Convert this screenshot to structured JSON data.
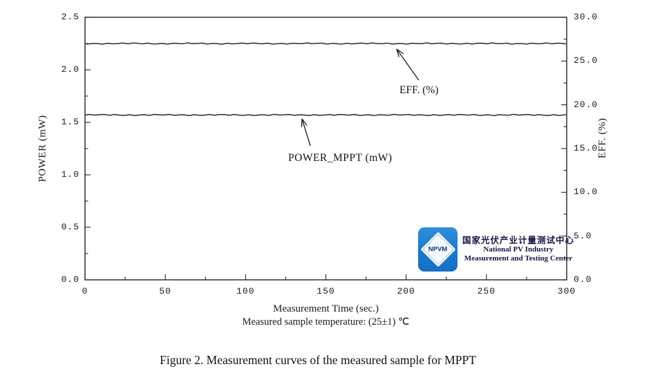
{
  "chart_data": {
    "type": "line",
    "title": "",
    "x_axis": {
      "label": "Measurement Time (sec.)",
      "min": 0,
      "max": 300,
      "major_ticks": [
        0,
        50,
        100,
        150,
        200,
        250,
        300
      ],
      "tick_labels": [
        "0",
        "50",
        "100",
        "150",
        "200",
        "250",
        "300"
      ],
      "minor_step": 25
    },
    "left_axis": {
      "label": "POWER (mW)",
      "min": 0,
      "max": 2.5,
      "major_ticks": [
        0,
        0.5,
        1.0,
        1.5,
        2.0,
        2.5
      ],
      "tick_labels": [
        "0.0",
        "0.5",
        "1.0",
        "1.5",
        "2.0",
        "2.5"
      ],
      "minor_step": 0.25
    },
    "right_axis": {
      "label": "EFF. (%)",
      "min": 0,
      "max": 30,
      "major_ticks": [
        0,
        5,
        10,
        15,
        20,
        25,
        30
      ],
      "tick_labels": [
        "0.0",
        "5.0",
        "10.0",
        "15.0",
        "20.0",
        "25.0",
        "30.0"
      ],
      "minor_step": 2.5
    },
    "series": [
      {
        "name": "EFF. (%)",
        "axis": "right",
        "value": 27.0,
        "x_range": [
          0,
          300
        ]
      },
      {
        "name": "POWER_MPPT (mW)",
        "axis": "left",
        "value": 1.57,
        "x_range": [
          0,
          300
        ]
      }
    ],
    "annotations": [
      {
        "label": "EFF. (%)"
      },
      {
        "label": "POWER_MPPT (mW)"
      }
    ],
    "grid": false,
    "legend_position": "arrow annotations inside plot"
  },
  "labels": {
    "temperature_note": "Measured sample temperature: (25±1) ℃"
  },
  "logo": {
    "acronym": "NPVM",
    "name_cn": "国家光伏产业计量测试中心",
    "name_en_line1": "National PV Industry",
    "name_en_line2": "Measurement and Testing Center",
    "brand_color": "#1b79cd"
  },
  "caption": "Figure 2. Measurement curves of the measured sample for MPPT"
}
